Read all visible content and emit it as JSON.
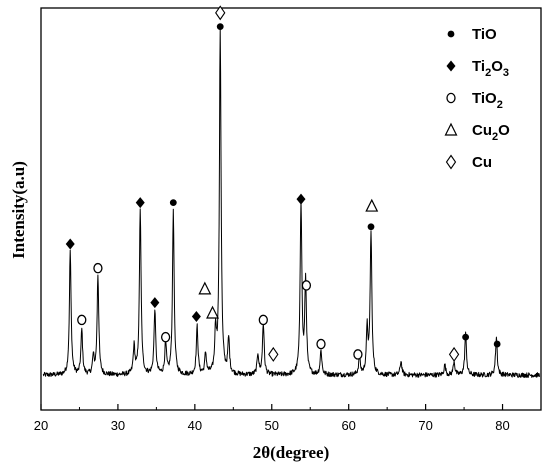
{
  "chart_data": {
    "type": "line",
    "xlabel": "2θ(degree)",
    "ylabel": "Intensity(a.u)",
    "xlim": [
      20,
      85
    ],
    "xticks": [
      20,
      30,
      40,
      50,
      60,
      70,
      80
    ],
    "y_ticks_shown": false,
    "grid": false,
    "legend_position": "top-right",
    "series": [
      {
        "color": "#000000",
        "baseline": 0.02,
        "peaks": [
          {
            "x": 23.8,
            "y": 0.36
          },
          {
            "x": 25.3,
            "y": 0.13
          },
          {
            "x": 26.8,
            "y": 0.05
          },
          {
            "x": 27.4,
            "y": 0.29
          },
          {
            "x": 32.1,
            "y": 0.08
          },
          {
            "x": 32.9,
            "y": 0.48
          },
          {
            "x": 34.8,
            "y": 0.19
          },
          {
            "x": 36.2,
            "y": 0.09
          },
          {
            "x": 37.2,
            "y": 0.47
          },
          {
            "x": 40.3,
            "y": 0.14
          },
          {
            "x": 41.4,
            "y": 0.06
          },
          {
            "x": 42.7,
            "y": 0.12
          },
          {
            "x": 43.3,
            "y": 1.0
          },
          {
            "x": 44.4,
            "y": 0.1
          },
          {
            "x": 48.2,
            "y": 0.06
          },
          {
            "x": 48.9,
            "y": 0.15
          },
          {
            "x": 53.8,
            "y": 0.5
          },
          {
            "x": 54.4,
            "y": 0.27
          },
          {
            "x": 56.4,
            "y": 0.07
          },
          {
            "x": 61.4,
            "y": 0.05
          },
          {
            "x": 62.4,
            "y": 0.13
          },
          {
            "x": 62.9,
            "y": 0.41
          },
          {
            "x": 66.8,
            "y": 0.04
          },
          {
            "x": 72.5,
            "y": 0.03
          },
          {
            "x": 73.7,
            "y": 0.04
          },
          {
            "x": 75.2,
            "y": 0.12
          },
          {
            "x": 79.2,
            "y": 0.11
          }
        ]
      }
    ],
    "markers": [
      {
        "symbol": "filled-diamond",
        "x": 23.8,
        "y": 0.4
      },
      {
        "symbol": "open-circle",
        "x": 25.3,
        "y": 0.18
      },
      {
        "symbol": "open-circle",
        "x": 27.4,
        "y": 0.33
      },
      {
        "symbol": "filled-diamond",
        "x": 32.9,
        "y": 0.52
      },
      {
        "symbol": "filled-diamond",
        "x": 34.8,
        "y": 0.23
      },
      {
        "symbol": "open-circle",
        "x": 36.2,
        "y": 0.13
      },
      {
        "symbol": "filled-circle",
        "x": 37.2,
        "y": 0.52
      },
      {
        "symbol": "filled-diamond",
        "x": 40.2,
        "y": 0.19
      },
      {
        "symbol": "open-triangle",
        "x": 41.3,
        "y": 0.27
      },
      {
        "symbol": "open-triangle",
        "x": 42.3,
        "y": 0.2
      },
      {
        "symbol": "open-diamond",
        "x": 43.3,
        "y": 1.07
      },
      {
        "symbol": "filled-circle",
        "x": 43.3,
        "y": 1.03
      },
      {
        "symbol": "open-circle",
        "x": 48.9,
        "y": 0.18
      },
      {
        "symbol": "open-diamond",
        "x": 50.2,
        "y": 0.08
      },
      {
        "symbol": "filled-diamond",
        "x": 53.8,
        "y": 0.53
      },
      {
        "symbol": "open-circle",
        "x": 54.5,
        "y": 0.28
      },
      {
        "symbol": "open-circle",
        "x": 56.4,
        "y": 0.11
      },
      {
        "symbol": "open-circle",
        "x": 61.2,
        "y": 0.08
      },
      {
        "symbol": "open-triangle",
        "x": 63.0,
        "y": 0.51
      },
      {
        "symbol": "filled-circle",
        "x": 62.9,
        "y": 0.45
      },
      {
        "symbol": "open-diamond",
        "x": 73.7,
        "y": 0.08
      },
      {
        "symbol": "filled-circle",
        "x": 75.2,
        "y": 0.13
      },
      {
        "symbol": "filled-circle",
        "x": 79.3,
        "y": 0.11
      }
    ]
  },
  "legend": [
    {
      "symbol": "filled-circle",
      "label": "TiO",
      "main": "TiO",
      "sub": "",
      "tail": "",
      "sub2": ""
    },
    {
      "symbol": "filled-diamond",
      "label": "Ti2O3",
      "main": "Ti",
      "sub": "2",
      "tail": "O",
      "sub2": "3"
    },
    {
      "symbol": "open-circle",
      "label": "TiO2",
      "main": "TiO",
      "sub": "2",
      "tail": "",
      "sub2": ""
    },
    {
      "symbol": "open-triangle",
      "label": "Cu2O",
      "main": "Cu",
      "sub": "2",
      "tail": "O",
      "sub2": ""
    },
    {
      "symbol": "open-diamond",
      "label": "Cu",
      "main": "Cu",
      "sub": "",
      "tail": "",
      "sub2": ""
    }
  ]
}
